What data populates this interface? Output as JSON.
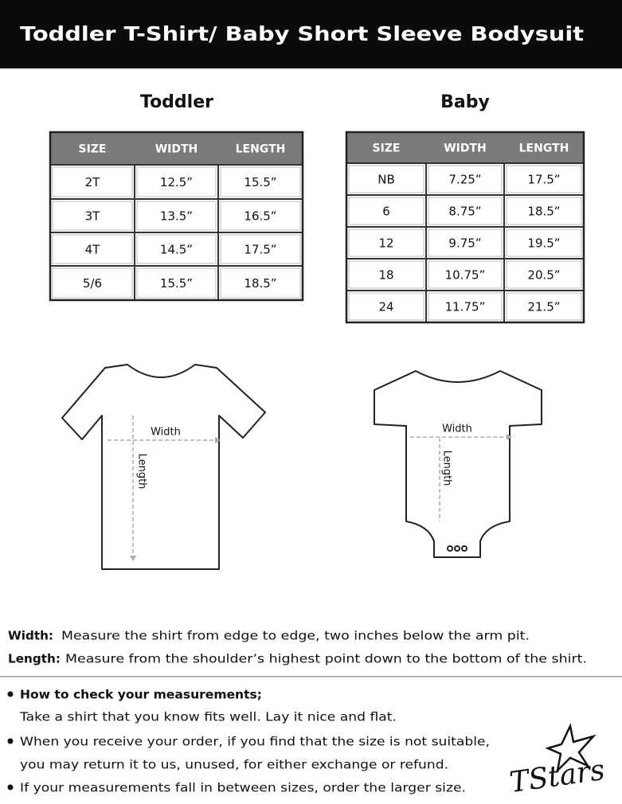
{
  "header": {
    "title": "Toddler T-Shirt/ Baby Short Sleeve Bodysuit"
  },
  "toddler": {
    "title": "Toddler",
    "table": {
      "columns": [
        "SIZE",
        "WIDTH",
        "LENGTH"
      ],
      "rows": [
        [
          "2T",
          "12.5”",
          "15.5”"
        ],
        [
          "3T",
          "13.5”",
          "16.5”"
        ],
        [
          "4T",
          "14.5”",
          "17.5”"
        ],
        [
          "5/6",
          "15.5”",
          "18.5”"
        ]
      ]
    },
    "diagram": {
      "width": "Width",
      "length": "Length"
    }
  },
  "baby": {
    "title": "Baby",
    "table": {
      "columns": [
        "SIZE",
        "WIDTH",
        "LENGTH"
      ],
      "rows": [
        [
          "NB",
          "7.25”",
          "17.5”"
        ],
        [
          "6",
          "8.75”",
          "18.5”"
        ],
        [
          "12",
          "9.75”",
          "19.5”"
        ],
        [
          "18",
          "10.75”",
          "20.5”"
        ],
        [
          "24",
          "11.75”",
          "21.5”"
        ]
      ]
    },
    "diagram": {
      "width": "Width",
      "length": "Length"
    }
  },
  "definitions": [
    {
      "term": "Width:",
      "text": "Measure the shirt from edge to edge, two inches below the arm pit."
    },
    {
      "term": "Length:",
      "text": "Measure from the shoulder’s highest point down to the bottom of the shirt."
    }
  ],
  "tips": [
    {
      "title": "How to check your measurements;",
      "lines": [
        "Take a shirt that you know fits well. Lay it nice and flat."
      ]
    },
    {
      "lines": [
        "When you receive your order, if you find that the size is not suitable,",
        "you may return it to us, unused, for either exchange or refund."
      ]
    },
    {
      "lines": [
        "If your measurements fall in between sizes, order the larger size."
      ]
    }
  ],
  "logo": "TStars"
}
